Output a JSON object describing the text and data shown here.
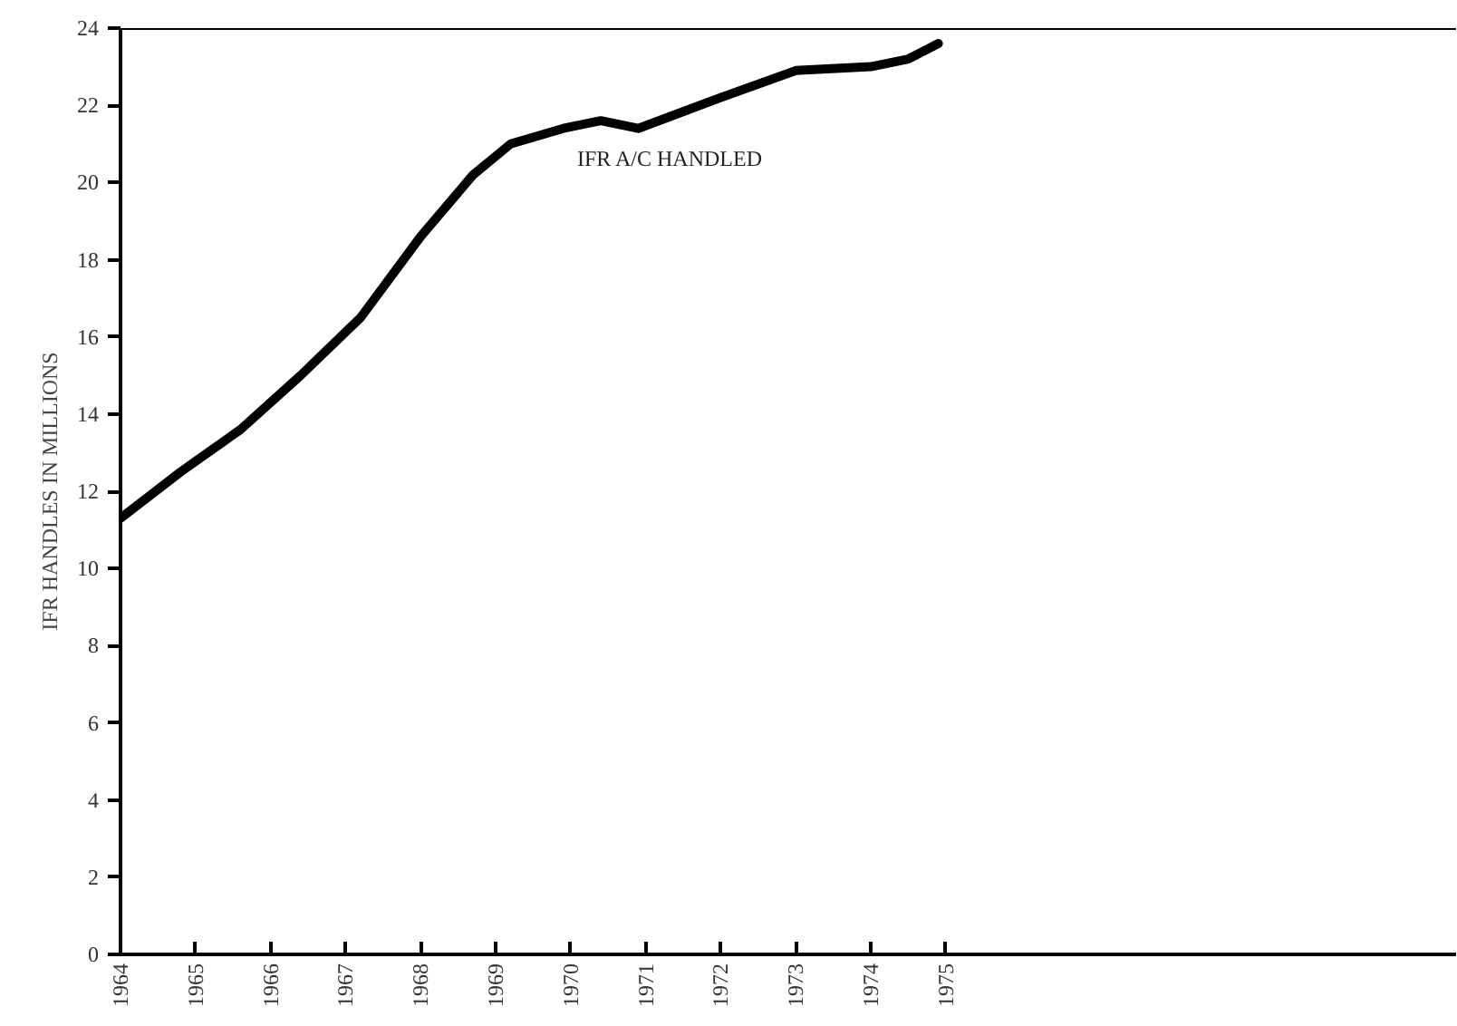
{
  "chart_data": {
    "type": "line",
    "ylabel": "IFR HANDLES IN MILLIONS",
    "x": [
      1964,
      1964.8,
      1965.6,
      1966.4,
      1967.2,
      1968.0,
      1968.7,
      1969.2,
      1969.9,
      1970.4,
      1970.9,
      1972.0,
      1973.0,
      1974.0,
      1974.5,
      1974.9
    ],
    "series": [
      {
        "color": "#000000",
        "values": [
          11.3,
          12.5,
          13.6,
          15.0,
          16.5,
          18.6,
          20.2,
          21.0,
          21.4,
          21.6,
          21.4,
          22.2,
          22.9,
          23.0,
          23.2,
          23.6
        ]
      }
    ],
    "xlim": [
      1964,
      1981.8
    ],
    "xticks": [
      1964,
      1965,
      1966,
      1967,
      1968,
      1969,
      1970,
      1971,
      1972,
      1973,
      1974,
      1975
    ],
    "ylim": [
      0,
      24
    ],
    "yticks": [
      0,
      2,
      4,
      6,
      8,
      10,
      12,
      14,
      16,
      18,
      20,
      22,
      24
    ],
    "annotations": [
      "IFR A/C HANDLED"
    ],
    "grid": false,
    "marker": "none",
    "line_style": "solid"
  }
}
